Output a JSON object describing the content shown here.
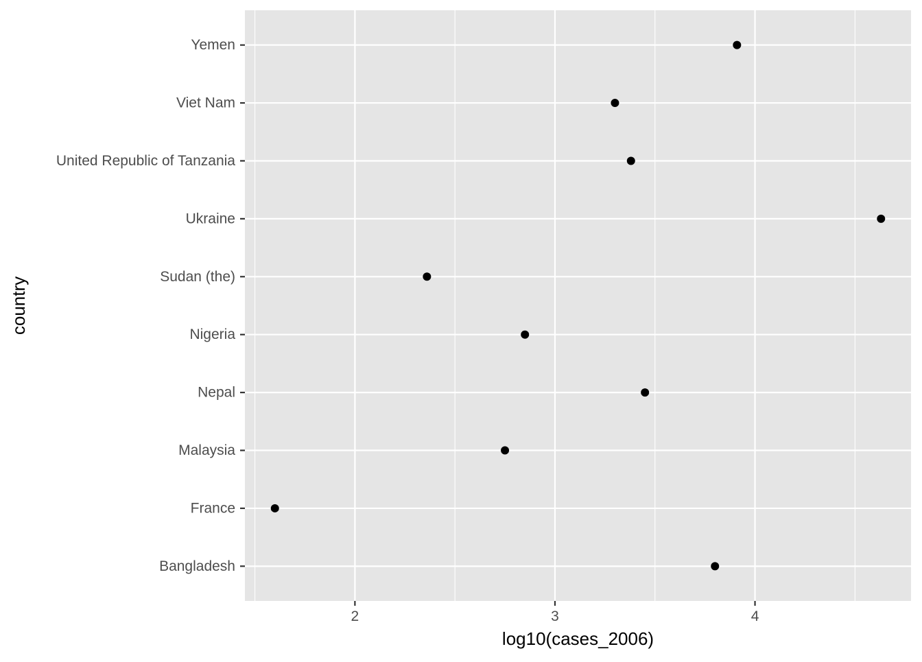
{
  "chart_data": {
    "type": "scatter",
    "title": "",
    "xlabel": "log10(cases_2006)",
    "ylabel": "country",
    "xlim": [
      1.45,
      4.78
    ],
    "x_ticks": [
      2,
      3,
      4
    ],
    "x_minor_ticks": [
      1.5,
      2.5,
      3.5,
      4.5
    ],
    "categories": [
      "Bangladesh",
      "France",
      "Malaysia",
      "Nepal",
      "Nigeria",
      "Sudan (the)",
      "Ukraine",
      "United Republic of Tanzania",
      "Viet Nam",
      "Yemen"
    ],
    "series": [
      {
        "values": [
          3.8,
          1.6,
          2.75,
          3.45,
          2.85,
          2.36,
          4.63,
          3.38,
          3.3,
          3.91
        ]
      }
    ],
    "grid": true,
    "legend": "none",
    "colors": {
      "panel_background": "#e5e5e5",
      "grid_line": "#ffffff",
      "point": "#000000",
      "tick_text": "#4d4d4d",
      "axis_title": "#000000",
      "tick_mark": "#333333"
    }
  }
}
